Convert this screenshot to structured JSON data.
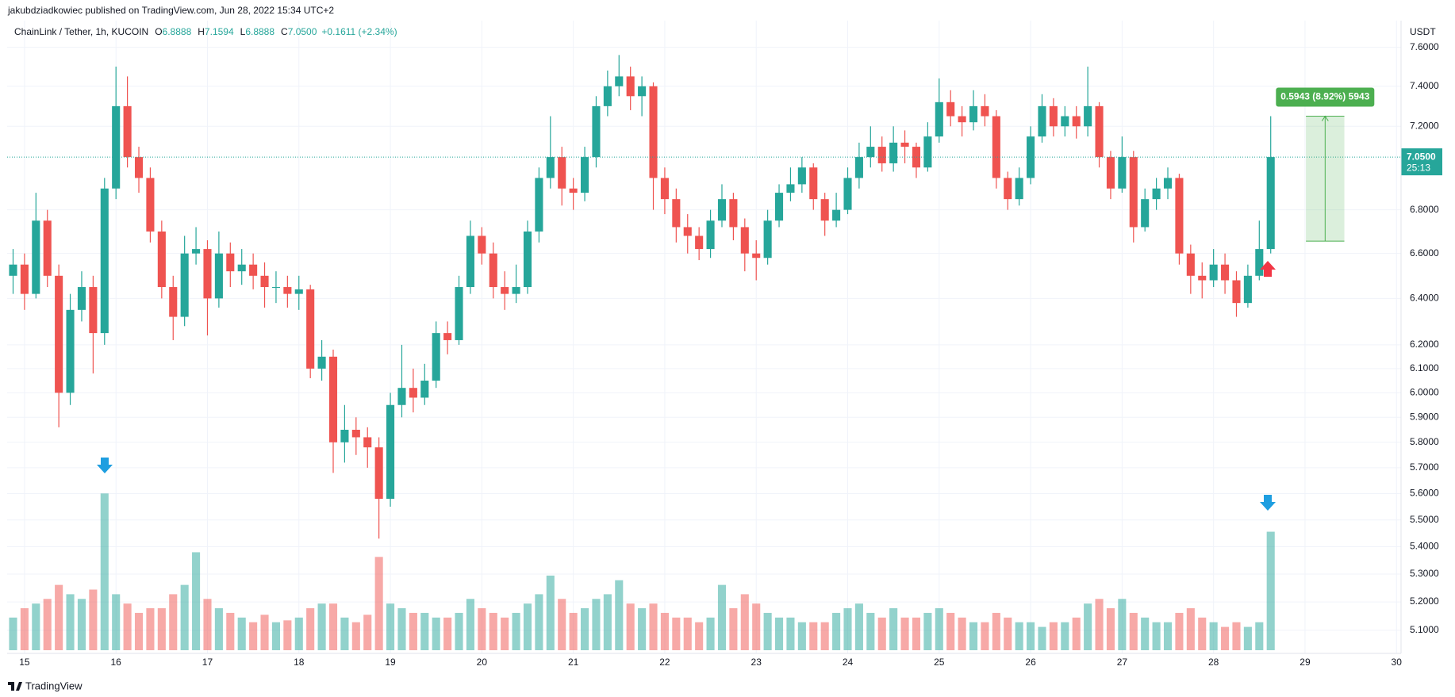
{
  "header": "jakubdziadkowiec published on TradingView.com, Jun 28, 2022 15:34 UTC+2",
  "footer": "TradingView",
  "chart_data": {
    "type": "candlestick",
    "legend": {
      "symbol": "ChainLink / Tether, 1h, KUCOIN",
      "ohlc": [
        {
          "label": "O",
          "value": "6.8888"
        },
        {
          "label": "H",
          "value": "7.1594"
        },
        {
          "label": "L",
          "value": "6.8888"
        },
        {
          "label": "C",
          "value": "7.0500"
        }
      ],
      "change": "+0.1611 (+2.34%)"
    },
    "axis_unit": "USDT",
    "up_color": "#26a69a",
    "down_color": "#ef5350",
    "log_scale": true,
    "grid": true,
    "xlim": [
      14.81,
      30.05
    ],
    "xticks": [
      15,
      16,
      17,
      18,
      19,
      20,
      21,
      22,
      23,
      24,
      25,
      26,
      27,
      28,
      29,
      30
    ],
    "ylim": [
      5.02,
      7.74
    ],
    "yticks": [
      {
        "value": 7.6,
        "label": "7.6000"
      },
      {
        "value": 7.4,
        "label": "7.4000"
      },
      {
        "value": 7.2,
        "label": "7.2000"
      },
      {
        "value": 6.8,
        "label": "6.8000"
      },
      {
        "value": 6.6,
        "label": "6.6000"
      },
      {
        "value": 6.4,
        "label": "6.4000"
      },
      {
        "value": 6.2,
        "label": "6.2000"
      },
      {
        "value": 6.1,
        "label": "6.1000"
      },
      {
        "value": 6.0,
        "label": "6.0000"
      },
      {
        "value": 5.9,
        "label": "5.9000"
      },
      {
        "value": 5.8,
        "label": "5.8000"
      },
      {
        "value": 5.7,
        "label": "5.7000"
      },
      {
        "value": 5.6,
        "label": "5.6000"
      },
      {
        "value": 5.5,
        "label": "5.5000"
      },
      {
        "value": 5.4,
        "label": "5.4000"
      },
      {
        "value": 5.3,
        "label": "5.3000"
      },
      {
        "value": 5.2,
        "label": "5.2000"
      },
      {
        "value": 5.1,
        "label": "5.1000"
      }
    ],
    "last_price": {
      "value": 7.05,
      "label": "7.0500"
    },
    "countdown": "25:13",
    "measure": {
      "from": 6.6557,
      "to": 7.25,
      "x": [
        29.01,
        29.43
      ],
      "label": "0.5943 (8.92%) 5943"
    },
    "x": [
      14.875,
      15,
      15.125,
      15.25,
      15.375,
      15.5,
      15.625,
      15.75,
      15.875,
      16,
      16.125,
      16.25,
      16.375,
      16.5,
      16.625,
      16.75,
      16.875,
      17,
      17.125,
      17.25,
      17.375,
      17.5,
      17.625,
      17.75,
      17.875,
      18,
      18.125,
      18.25,
      18.375,
      18.5,
      18.625,
      18.75,
      18.875,
      19,
      19.125,
      19.25,
      19.375,
      19.5,
      19.625,
      19.75,
      19.875,
      20,
      20.125,
      20.25,
      20.375,
      20.5,
      20.625,
      20.75,
      20.875,
      21,
      21.125,
      21.25,
      21.375,
      21.5,
      21.625,
      21.75,
      21.875,
      22,
      22.125,
      22.25,
      22.375,
      22.5,
      22.625,
      22.75,
      22.875,
      23,
      23.125,
      23.25,
      23.375,
      23.5,
      23.625,
      23.75,
      23.875,
      24,
      24.125,
      24.25,
      24.375,
      24.5,
      24.625,
      24.75,
      24.875,
      25,
      25.125,
      25.25,
      25.375,
      25.5,
      25.625,
      25.75,
      25.875,
      26,
      26.125,
      26.25,
      26.375,
      26.5,
      26.625,
      26.75,
      26.875,
      27,
      27.125,
      27.25,
      27.375,
      27.5,
      27.625,
      27.75,
      27.875,
      28,
      28.125,
      28.25,
      28.375,
      28.5,
      28.625
    ],
    "open": [
      6.5,
      6.55,
      6.42,
      6.75,
      6.5,
      6.0,
      6.35,
      6.45,
      6.25,
      6.9,
      7.3,
      7.05,
      6.95,
      6.7,
      6.45,
      6.32,
      6.6,
      6.62,
      6.4,
      6.6,
      6.52,
      6.55,
      6.5,
      6.45,
      6.45,
      6.42,
      6.44,
      6.1,
      6.15,
      5.8,
      5.85,
      5.82,
      5.78,
      5.58,
      5.95,
      6.02,
      5.98,
      6.05,
      6.25,
      6.22,
      6.45,
      6.68,
      6.6,
      6.45,
      6.42,
      6.45,
      6.7,
      6.95,
      7.05,
      6.9,
      6.88,
      7.05,
      7.3,
      7.4,
      7.45,
      7.35,
      7.4,
      6.95,
      6.85,
      6.72,
      6.68,
      6.62,
      6.75,
      6.85,
      6.72,
      6.6,
      6.58,
      6.75,
      6.88,
      6.92,
      7.0,
      6.85,
      6.75,
      6.8,
      6.95,
      7.05,
      7.1,
      7.02,
      7.12,
      7.1,
      7.0,
      7.15,
      7.32,
      7.25,
      7.22,
      7.3,
      7.25,
      6.95,
      6.85,
      6.95,
      7.15,
      7.3,
      7.2,
      7.25,
      7.2,
      7.3,
      7.05,
      6.9,
      7.05,
      6.72,
      6.85,
      6.9,
      6.95,
      6.6,
      6.5,
      6.48,
      6.55,
      6.48,
      6.38,
      6.5,
      6.62
    ],
    "high": [
      6.62,
      6.6,
      6.88,
      6.8,
      6.55,
      6.42,
      6.52,
      6.5,
      6.95,
      7.5,
      7.45,
      7.1,
      7.0,
      6.75,
      6.5,
      6.68,
      6.72,
      6.66,
      6.7,
      6.65,
      6.62,
      6.6,
      6.56,
      6.52,
      6.5,
      6.5,
      6.46,
      6.22,
      6.18,
      5.95,
      5.9,
      5.86,
      5.82,
      6.0,
      6.2,
      6.1,
      6.12,
      6.3,
      6.3,
      6.5,
      6.75,
      6.72,
      6.65,
      6.52,
      6.55,
      6.75,
      7.0,
      7.25,
      7.1,
      6.95,
      7.1,
      7.35,
      7.48,
      7.56,
      7.5,
      7.45,
      7.42,
      7.0,
      6.9,
      6.78,
      6.72,
      6.8,
      6.92,
      6.88,
      6.76,
      6.66,
      6.8,
      6.92,
      7.0,
      7.05,
      7.02,
      6.88,
      6.88,
      7.0,
      7.12,
      7.2,
      7.15,
      7.2,
      7.18,
      7.12,
      7.22,
      7.44,
      7.38,
      7.3,
      7.38,
      7.36,
      7.28,
      6.98,
      7.0,
      7.2,
      7.36,
      7.34,
      7.3,
      7.3,
      7.5,
      7.32,
      7.08,
      7.15,
      7.08,
      6.9,
      6.95,
      7.0,
      6.97,
      6.64,
      6.56,
      6.62,
      6.6,
      6.52,
      6.55,
      6.75,
      7.25
    ],
    "low": [
      6.42,
      6.35,
      6.4,
      6.45,
      5.86,
      5.95,
      6.3,
      6.08,
      6.2,
      6.85,
      7.0,
      6.88,
      6.65,
      6.4,
      6.22,
      6.28,
      6.55,
      6.24,
      6.36,
      6.45,
      6.46,
      6.44,
      6.36,
      6.38,
      6.36,
      6.35,
      6.06,
      6.05,
      5.68,
      5.72,
      5.75,
      5.7,
      5.43,
      5.55,
      5.9,
      5.92,
      5.95,
      6.02,
      6.16,
      6.2,
      6.42,
      6.55,
      6.4,
      6.35,
      6.38,
      6.42,
      6.65,
      6.9,
      6.82,
      6.8,
      6.84,
      7.0,
      7.25,
      7.35,
      7.28,
      7.25,
      6.8,
      6.78,
      6.65,
      6.6,
      6.57,
      6.58,
      6.72,
      6.66,
      6.52,
      6.48,
      6.55,
      6.72,
      6.84,
      6.88,
      6.8,
      6.68,
      6.72,
      6.78,
      6.9,
      7.0,
      6.98,
      6.98,
      7.02,
      6.95,
      6.98,
      7.12,
      7.2,
      7.15,
      7.18,
      7.2,
      6.9,
      6.8,
      6.82,
      6.92,
      7.12,
      7.15,
      7.15,
      7.14,
      7.15,
      7.0,
      6.85,
      6.88,
      6.65,
      6.7,
      6.8,
      6.85,
      6.55,
      6.42,
      6.4,
      6.45,
      6.42,
      6.32,
      6.36,
      6.48,
      6.6
    ],
    "close": [
      6.55,
      6.42,
      6.75,
      6.5,
      6.0,
      6.35,
      6.45,
      6.25,
      6.9,
      7.3,
      7.05,
      6.95,
      6.7,
      6.45,
      6.32,
      6.6,
      6.62,
      6.4,
      6.6,
      6.52,
      6.55,
      6.5,
      6.45,
      6.45,
      6.42,
      6.44,
      6.1,
      6.15,
      5.8,
      5.85,
      5.82,
      5.78,
      5.58,
      5.95,
      6.02,
      5.98,
      6.05,
      6.25,
      6.22,
      6.45,
      6.68,
      6.6,
      6.45,
      6.42,
      6.45,
      6.7,
      6.95,
      7.05,
      6.9,
      6.88,
      7.05,
      7.3,
      7.4,
      7.45,
      7.35,
      7.4,
      6.95,
      6.85,
      6.72,
      6.68,
      6.62,
      6.75,
      6.85,
      6.72,
      6.6,
      6.58,
      6.75,
      6.88,
      6.92,
      7.0,
      6.85,
      6.75,
      6.8,
      6.95,
      7.05,
      7.1,
      7.02,
      7.12,
      7.1,
      7.0,
      7.15,
      7.32,
      7.25,
      7.22,
      7.3,
      7.25,
      6.95,
      6.85,
      6.95,
      7.15,
      7.3,
      7.2,
      7.25,
      7.2,
      7.3,
      7.05,
      6.9,
      7.05,
      6.72,
      6.85,
      6.9,
      6.95,
      6.6,
      6.5,
      6.48,
      6.55,
      6.48,
      6.38,
      6.5,
      6.62,
      7.05
    ],
    "volume": [
      35,
      45,
      50,
      55,
      70,
      60,
      55,
      65,
      168,
      60,
      50,
      40,
      45,
      45,
      60,
      70,
      105,
      55,
      45,
      40,
      35,
      30,
      38,
      30,
      32,
      35,
      45,
      50,
      50,
      35,
      30,
      38,
      100,
      50,
      45,
      40,
      40,
      35,
      35,
      40,
      55,
      45,
      40,
      35,
      40,
      50,
      60,
      80,
      55,
      40,
      45,
      55,
      60,
      75,
      50,
      45,
      50,
      40,
      35,
      35,
      30,
      35,
      70,
      45,
      60,
      50,
      40,
      35,
      35,
      30,
      30,
      30,
      40,
      45,
      50,
      40,
      35,
      45,
      35,
      35,
      40,
      45,
      40,
      35,
      30,
      30,
      40,
      35,
      30,
      30,
      25,
      30,
      30,
      35,
      50,
      55,
      45,
      55,
      40,
      35,
      30,
      30,
      40,
      45,
      35,
      30,
      25,
      30,
      25,
      30,
      127
    ]
  }
}
